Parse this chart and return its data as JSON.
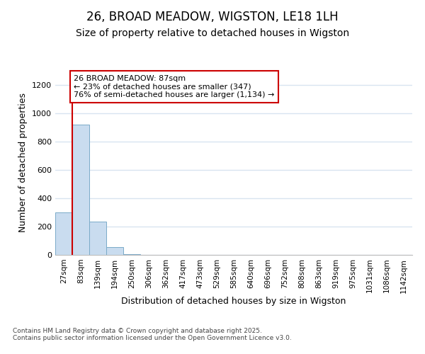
{
  "title_line1": "26, BROAD MEADOW, WIGSTON, LE18 1LH",
  "title_line2": "Size of property relative to detached houses in Wigston",
  "xlabel": "Distribution of detached houses by size in Wigston",
  "ylabel": "Number of detached properties",
  "bar_labels": [
    "27sqm",
    "83sqm",
    "139sqm",
    "194sqm",
    "250sqm",
    "306sqm",
    "362sqm",
    "417sqm",
    "473sqm",
    "529sqm",
    "585sqm",
    "640sqm",
    "696sqm",
    "752sqm",
    "808sqm",
    "863sqm",
    "919sqm",
    "975sqm",
    "1031sqm",
    "1086sqm",
    "1142sqm"
  ],
  "bar_values": [
    300,
    920,
    235,
    55,
    5,
    0,
    0,
    0,
    0,
    0,
    0,
    0,
    0,
    0,
    0,
    0,
    0,
    0,
    0,
    0,
    0
  ],
  "bar_color": "#c9dcef",
  "bar_edge_color": "#7aaac8",
  "annotation_box_text": "26 BROAD MEADOW: 87sqm\n← 23% of detached houses are smaller (347)\n76% of semi-detached houses are larger (1,134) →",
  "annotation_box_color": "#cc0000",
  "annotation_box_fill": "#ffffff",
  "vline_x": 0.5,
  "vline_color": "#cc0000",
  "ylim": [
    0,
    1300
  ],
  "yticks": [
    0,
    200,
    400,
    600,
    800,
    1000,
    1200
  ],
  "plot_bg_color": "#ffffff",
  "fig_bg_color": "#ffffff",
  "grid_color": "#d8e4f0",
  "footer_text": "Contains HM Land Registry data © Crown copyright and database right 2025.\nContains public sector information licensed under the Open Government Licence v3.0.",
  "title_fontsize": 12,
  "subtitle_fontsize": 10,
  "axis_label_fontsize": 9,
  "tick_fontsize": 7.5,
  "annotation_fontsize": 8,
  "footer_fontsize": 6.5
}
